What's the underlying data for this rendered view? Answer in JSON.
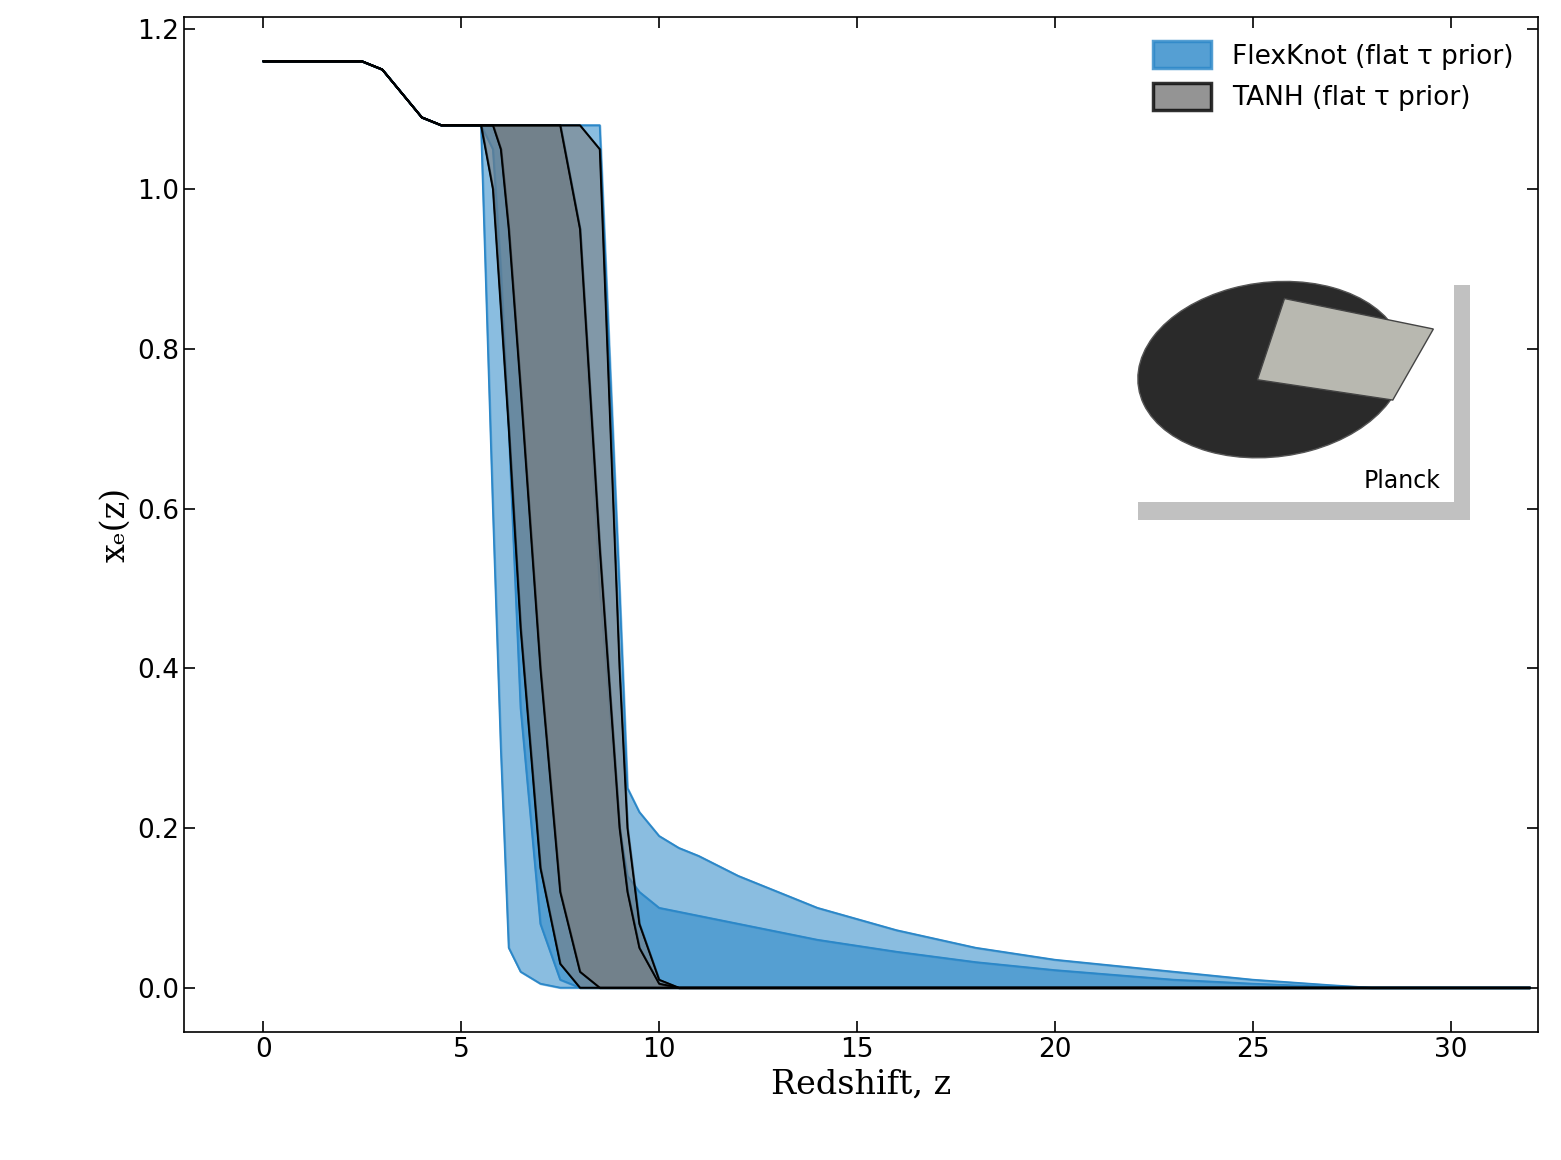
{
  "chart_data": {
    "type": "area",
    "x_label": "Redshift, z",
    "y_label": "xₑ(z)",
    "inset_label": "Planck",
    "legend": "upper right",
    "grid": false,
    "xlim": [
      -2,
      32.2
    ],
    "ylim": [
      -0.056,
      1.215
    ],
    "xticks": [
      0,
      5,
      10,
      15,
      20,
      25,
      30
    ],
    "yticks": [
      {
        "value": 0.0,
        "label": "0.0"
      },
      {
        "value": 0.2,
        "label": "0.2"
      },
      {
        "value": 0.4,
        "label": "0.4"
      },
      {
        "value": 0.6,
        "label": "0.6"
      },
      {
        "value": 0.8,
        "label": "0.8"
      },
      {
        "value": 1.0,
        "label": "1.0"
      },
      {
        "value": 1.2,
        "label": "1.2"
      }
    ],
    "x": [
      0,
      2.5,
      3,
      3.5,
      4,
      4.5,
      5,
      5.5,
      5.8,
      6,
      6.2,
      6.5,
      7,
      7.5,
      8,
      8.5,
      9,
      9.2,
      9.5,
      10,
      10.5,
      11,
      12,
      14,
      16,
      18,
      20,
      23,
      25,
      27,
      28,
      30,
      32
    ],
    "series": [
      {
        "name": "FlexKnot (flat τ prior)",
        "color": "#2b87c8",
        "bands": [
          {
            "lower": [
              1.16,
              1.16,
              1.15,
              1.12,
              1.09,
              1.08,
              1.08,
              1.08,
              0.6,
              0.3,
              0.05,
              0.02,
              0.005,
              0,
              0,
              0,
              0,
              0,
              0,
              0,
              0,
              0,
              0,
              0,
              0,
              0,
              0,
              0,
              0,
              0,
              0,
              0,
              0
            ],
            "upper": [
              1.16,
              1.16,
              1.15,
              1.12,
              1.09,
              1.08,
              1.08,
              1.08,
              1.08,
              1.08,
              1.08,
              1.08,
              1.08,
              1.08,
              1.08,
              1.08,
              0.5,
              0.25,
              0.22,
              0.19,
              0.175,
              0.165,
              0.14,
              0.1,
              0.072,
              0.05,
              0.035,
              0.02,
              0.01,
              0.003,
              0,
              0,
              0
            ]
          },
          {
            "lower": [
              1.16,
              1.16,
              1.15,
              1.12,
              1.09,
              1.08,
              1.08,
              1.08,
              1.05,
              0.9,
              0.7,
              0.35,
              0.08,
              0.01,
              0,
              0,
              0,
              0,
              0,
              0,
              0,
              0,
              0,
              0,
              0,
              0,
              0,
              0,
              0,
              0,
              0,
              0,
              0
            ],
            "upper": [
              1.16,
              1.16,
              1.15,
              1.12,
              1.09,
              1.08,
              1.08,
              1.08,
              1.08,
              1.08,
              1.08,
              1.08,
              1.08,
              1.08,
              0.95,
              0.5,
              0.2,
              0.14,
              0.12,
              0.1,
              0.095,
              0.09,
              0.08,
              0.06,
              0.045,
              0.032,
              0.022,
              0.01,
              0.005,
              0.001,
              0,
              0,
              0
            ]
          }
        ]
      },
      {
        "name": "TANH (flat τ prior)",
        "color": "#7a7a7a",
        "bands": [
          {
            "lower": [
              1.16,
              1.16,
              1.15,
              1.12,
              1.09,
              1.08,
              1.08,
              1.08,
              1.0,
              0.85,
              0.7,
              0.45,
              0.15,
              0.03,
              0,
              0,
              0,
              0,
              0,
              0,
              0,
              0,
              0,
              0,
              0,
              0,
              0,
              0,
              0,
              0,
              0,
              0,
              0
            ],
            "upper": [
              1.16,
              1.16,
              1.15,
              1.12,
              1.09,
              1.08,
              1.08,
              1.08,
              1.08,
              1.08,
              1.08,
              1.08,
              1.08,
              1.08,
              1.08,
              1.05,
              0.4,
              0.2,
              0.08,
              0.01,
              0,
              0,
              0,
              0,
              0,
              0,
              0,
              0,
              0,
              0,
              0,
              0,
              0
            ]
          },
          {
            "lower": [
              1.16,
              1.16,
              1.15,
              1.12,
              1.09,
              1.08,
              1.08,
              1.08,
              1.08,
              1.05,
              0.95,
              0.75,
              0.4,
              0.12,
              0.02,
              0,
              0,
              0,
              0,
              0,
              0,
              0,
              0,
              0,
              0,
              0,
              0,
              0,
              0,
              0,
              0,
              0,
              0
            ],
            "upper": [
              1.16,
              1.16,
              1.15,
              1.12,
              1.09,
              1.08,
              1.08,
              1.08,
              1.08,
              1.08,
              1.08,
              1.08,
              1.08,
              1.08,
              0.95,
              0.55,
              0.2,
              0.12,
              0.05,
              0.005,
              0,
              0,
              0,
              0,
              0,
              0,
              0,
              0,
              0,
              0,
              0,
              0,
              0
            ]
          }
        ]
      }
    ]
  }
}
